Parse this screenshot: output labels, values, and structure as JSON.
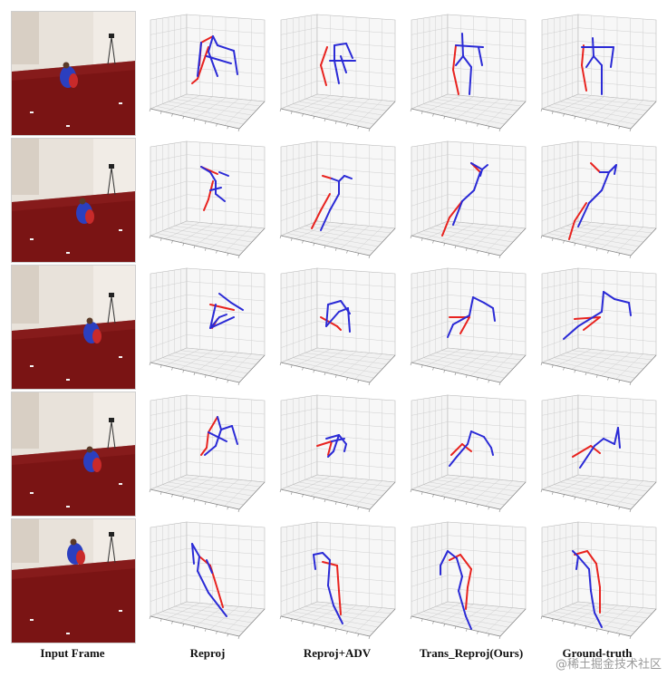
{
  "columns": [
    {
      "key": "input",
      "label": "Input Frame"
    },
    {
      "key": "reproj",
      "label": "Reproj"
    },
    {
      "key": "reproj_adv",
      "label": "Reproj+ADV"
    },
    {
      "key": "trans_reproj",
      "label": "Trans_Reproj(Ours)"
    },
    {
      "key": "ground_truth",
      "label": "Ground-truth"
    }
  ],
  "watermark": "@稀土掘金技术社区",
  "colors": {
    "right_limbs": "#e8231f",
    "left_limbs": "#2a2ad6",
    "grid": "#cfcfcf",
    "floor": "#7a1414",
    "wall": "#e8e2da"
  },
  "rows": 5
}
